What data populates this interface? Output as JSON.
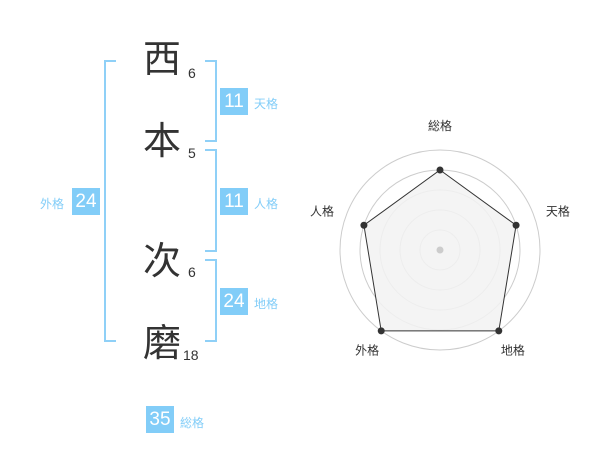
{
  "name_chars": [
    {
      "char": "西",
      "strokes": "6"
    },
    {
      "char": "本",
      "strokes": "5"
    },
    {
      "char": "次",
      "strokes": "6"
    },
    {
      "char": "磨",
      "strokes": "18"
    }
  ],
  "fortunes": {
    "tenkaku": {
      "label": "天格",
      "value": "11"
    },
    "jinkaku": {
      "label": "人格",
      "value": "11"
    },
    "chikaku": {
      "label": "地格",
      "value": "24"
    },
    "gaikaku": {
      "label": "外格",
      "value": "24"
    },
    "soukaku": {
      "label": "総格",
      "value": "35"
    }
  },
  "colors": {
    "accent": "#82cdf8",
    "bracket": "#8fd0f7",
    "radar_fill": "#f2f2f2",
    "radar_line": "#333333",
    "grid": "#cccccc"
  },
  "chart_data": {
    "type": "radar",
    "axes": [
      "総格",
      "天格",
      "地格",
      "外格",
      "人格"
    ],
    "values": [
      4,
      4,
      5,
      5,
      4
    ],
    "range": [
      0,
      5
    ],
    "grid": true
  }
}
